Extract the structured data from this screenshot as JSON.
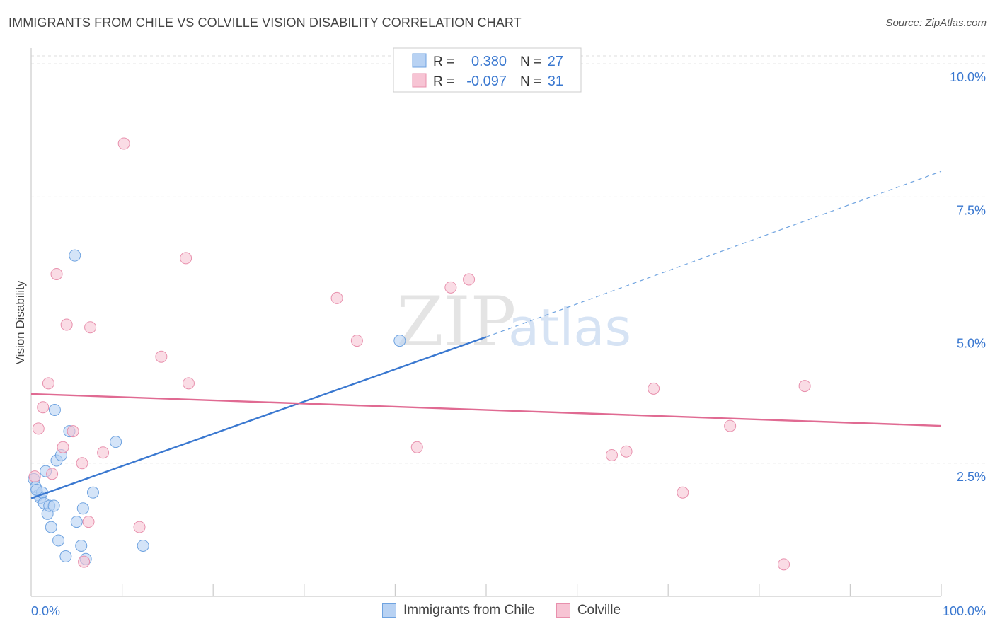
{
  "title": "IMMIGRANTS FROM CHILE VS COLVILLE VISION DISABILITY CORRELATION CHART",
  "source": "Source: ZipAtlas.com",
  "watermark": {
    "zip": "ZIP",
    "atlas": "atlas"
  },
  "colors": {
    "blue": "#6fa3e0",
    "blue_fill": "#b8d2f3",
    "blue_line": "#3a78d0",
    "pink": "#e890ad",
    "pink_fill": "#f7c4d4",
    "pink_line": "#e06a92",
    "axis_label": "#3a78d0",
    "grid": "#dddddd"
  },
  "legend": {
    "series": [
      {
        "r_label": "R =",
        "r_value": "0.380",
        "n_label": "N =",
        "n_value": "27"
      },
      {
        "r_label": "R =",
        "r_value": "-0.097",
        "n_label": "N =",
        "n_value": "31"
      }
    ]
  },
  "chart_data": {
    "type": "scatter",
    "title": "IMMIGRANTS FROM CHILE VS COLVILLE VISION DISABILITY CORRELATION CHART",
    "xlabel": "",
    "ylabel": "Vision Disability",
    "xlim": [
      0,
      100
    ],
    "ylim": [
      0,
      10.4
    ],
    "x_tick_labels": [
      "0.0%",
      "100.0%"
    ],
    "y_ticks": [
      {
        "value": 2.5,
        "label": "2.5%"
      },
      {
        "value": 5.0,
        "label": "5.0%"
      },
      {
        "value": 7.5,
        "label": "7.5%"
      },
      {
        "value": 10.0,
        "label": "10.0%"
      }
    ],
    "series": [
      {
        "name": "Immigrants from Chile",
        "color": "blue",
        "trend": {
          "x0": 0,
          "y0": 1.84,
          "x1": 50,
          "y1": 4.87,
          "dash_x1": 100,
          "dash_y1": 7.98
        },
        "points": [
          [
            0.3,
            2.2
          ],
          [
            0.5,
            2.05
          ],
          [
            0.8,
            1.9
          ],
          [
            1.0,
            1.85
          ],
          [
            1.2,
            1.95
          ],
          [
            1.4,
            1.75
          ],
          [
            1.6,
            2.35
          ],
          [
            1.8,
            1.55
          ],
          [
            2.0,
            1.7
          ],
          [
            2.2,
            1.3
          ],
          [
            2.5,
            1.7
          ],
          [
            2.6,
            3.5
          ],
          [
            2.8,
            2.55
          ],
          [
            3.0,
            1.05
          ],
          [
            3.3,
            2.65
          ],
          [
            3.8,
            0.75
          ],
          [
            4.2,
            3.1
          ],
          [
            4.8,
            6.4
          ],
          [
            5.0,
            1.4
          ],
          [
            5.5,
            0.95
          ],
          [
            5.7,
            1.65
          ],
          [
            6.0,
            0.7
          ],
          [
            6.8,
            1.95
          ],
          [
            9.3,
            2.9
          ],
          [
            12.3,
            0.95
          ],
          [
            40.5,
            4.8
          ],
          [
            0.6,
            2.0
          ]
        ]
      },
      {
        "name": "Colville",
        "color": "pink",
        "trend": {
          "x0": 0,
          "y0": 3.8,
          "x1": 100,
          "y1": 3.2
        },
        "points": [
          [
            0.4,
            2.25
          ],
          [
            0.8,
            3.15
          ],
          [
            1.3,
            3.55
          ],
          [
            1.9,
            4.0
          ],
          [
            2.3,
            2.3
          ],
          [
            2.8,
            6.05
          ],
          [
            3.5,
            2.8
          ],
          [
            3.9,
            5.1
          ],
          [
            4.6,
            3.1
          ],
          [
            5.6,
            2.5
          ],
          [
            5.8,
            0.65
          ],
          [
            6.3,
            1.4
          ],
          [
            6.5,
            5.05
          ],
          [
            7.9,
            2.7
          ],
          [
            10.2,
            8.5
          ],
          [
            11.9,
            1.3
          ],
          [
            14.3,
            4.5
          ],
          [
            17.0,
            6.35
          ],
          [
            17.3,
            4.0
          ],
          [
            33.6,
            5.6
          ],
          [
            35.8,
            4.8
          ],
          [
            42.4,
            2.8
          ],
          [
            46.1,
            5.8
          ],
          [
            48.1,
            5.95
          ],
          [
            63.8,
            2.65
          ],
          [
            65.4,
            2.72
          ],
          [
            68.4,
            3.9
          ],
          [
            71.6,
            1.95
          ],
          [
            76.8,
            3.2
          ],
          [
            82.7,
            0.6
          ],
          [
            85.0,
            3.95
          ]
        ]
      }
    ]
  }
}
